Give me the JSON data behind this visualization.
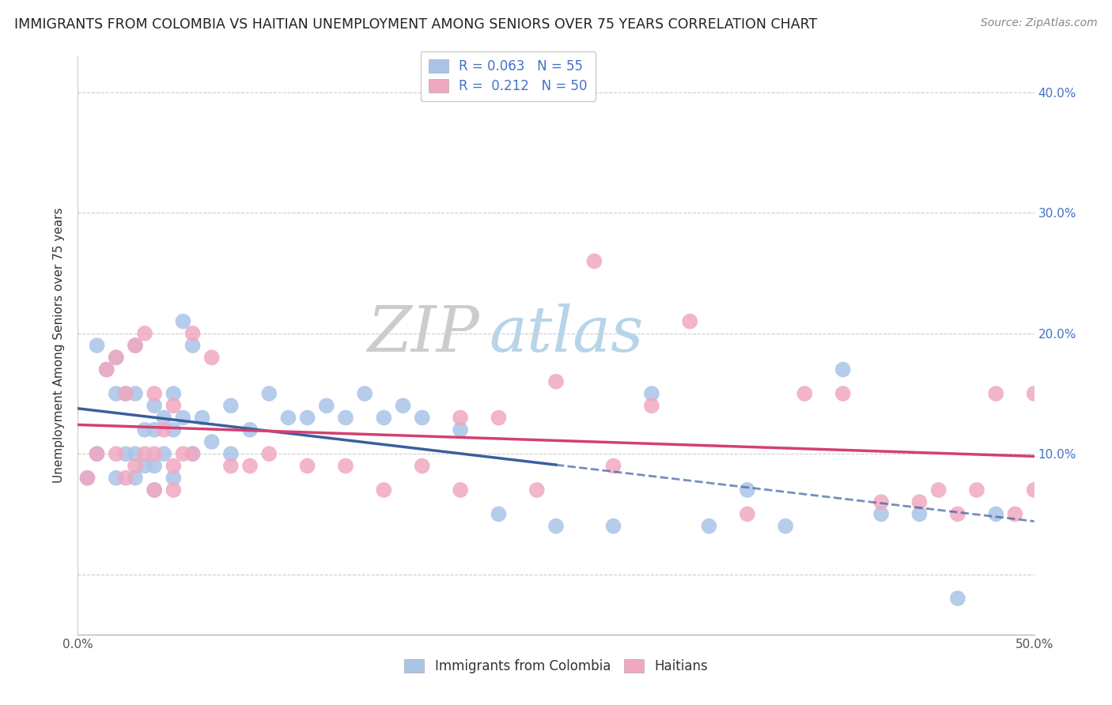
{
  "title": "IMMIGRANTS FROM COLOMBIA VS HAITIAN UNEMPLOYMENT AMONG SENIORS OVER 75 YEARS CORRELATION CHART",
  "source": "Source: ZipAtlas.com",
  "ylabel": "Unemployment Among Seniors over 75 years",
  "xlim": [
    0.0,
    0.5
  ],
  "ylim": [
    -0.05,
    0.43
  ],
  "xticks": [
    0.0,
    0.1,
    0.2,
    0.3,
    0.4,
    0.5
  ],
  "xticklabels": [
    "0.0%",
    "",
    "",
    "",
    "",
    "50.0%"
  ],
  "right_yticks": [
    0.1,
    0.2,
    0.3,
    0.4
  ],
  "right_yticklabels": [
    "10.0%",
    "20.0%",
    "30.0%",
    "40.0%"
  ],
  "colombia_R": 0.063,
  "colombia_N": 55,
  "haiti_R": 0.212,
  "haiti_N": 50,
  "colombia_color": "#aac4e8",
  "haiti_color": "#f0a8c0",
  "colombia_line_color": "#3a5fa0",
  "haiti_line_color": "#d44070",
  "legend1_label": "Immigrants from Colombia",
  "legend2_label": "Haitians",
  "watermark_zip": "ZIP",
  "watermark_atlas": "atlas",
  "colombia_x": [
    0.005,
    0.01,
    0.01,
    0.015,
    0.02,
    0.02,
    0.02,
    0.025,
    0.025,
    0.03,
    0.03,
    0.03,
    0.03,
    0.035,
    0.035,
    0.04,
    0.04,
    0.04,
    0.04,
    0.045,
    0.045,
    0.05,
    0.05,
    0.05,
    0.055,
    0.055,
    0.06,
    0.06,
    0.065,
    0.07,
    0.08,
    0.08,
    0.09,
    0.1,
    0.11,
    0.12,
    0.13,
    0.14,
    0.15,
    0.16,
    0.17,
    0.18,
    0.2,
    0.22,
    0.25,
    0.28,
    0.3,
    0.33,
    0.35,
    0.37,
    0.4,
    0.42,
    0.44,
    0.46,
    0.48
  ],
  "colombia_y": [
    0.08,
    0.19,
    0.1,
    0.17,
    0.18,
    0.15,
    0.08,
    0.15,
    0.1,
    0.19,
    0.15,
    0.1,
    0.08,
    0.12,
    0.09,
    0.14,
    0.12,
    0.09,
    0.07,
    0.13,
    0.1,
    0.15,
    0.12,
    0.08,
    0.21,
    0.13,
    0.19,
    0.1,
    0.13,
    0.11,
    0.14,
    0.1,
    0.12,
    0.15,
    0.13,
    0.13,
    0.14,
    0.13,
    0.15,
    0.13,
    0.14,
    0.13,
    0.12,
    0.05,
    0.04,
    0.04,
    0.15,
    0.04,
    0.07,
    0.04,
    0.17,
    0.05,
    0.05,
    -0.02,
    0.05
  ],
  "haiti_x": [
    0.005,
    0.01,
    0.015,
    0.02,
    0.02,
    0.025,
    0.025,
    0.03,
    0.03,
    0.035,
    0.035,
    0.04,
    0.04,
    0.04,
    0.045,
    0.05,
    0.05,
    0.05,
    0.055,
    0.06,
    0.06,
    0.07,
    0.08,
    0.09,
    0.1,
    0.12,
    0.14,
    0.16,
    0.18,
    0.2,
    0.2,
    0.22,
    0.24,
    0.25,
    0.27,
    0.28,
    0.3,
    0.32,
    0.35,
    0.38,
    0.4,
    0.42,
    0.44,
    0.45,
    0.46,
    0.47,
    0.48,
    0.49,
    0.5,
    0.5
  ],
  "haiti_y": [
    0.08,
    0.1,
    0.17,
    0.18,
    0.1,
    0.15,
    0.08,
    0.19,
    0.09,
    0.2,
    0.1,
    0.15,
    0.1,
    0.07,
    0.12,
    0.14,
    0.09,
    0.07,
    0.1,
    0.2,
    0.1,
    0.18,
    0.09,
    0.09,
    0.1,
    0.09,
    0.09,
    0.07,
    0.09,
    0.13,
    0.07,
    0.13,
    0.07,
    0.16,
    0.26,
    0.09,
    0.14,
    0.21,
    0.05,
    0.15,
    0.15,
    0.06,
    0.06,
    0.07,
    0.05,
    0.07,
    0.15,
    0.05,
    0.07,
    0.15
  ]
}
